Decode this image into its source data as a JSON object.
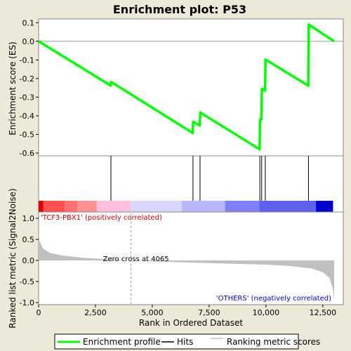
{
  "chart_data": {
    "type": "line",
    "title": "Enrichment plot: P53",
    "xlabel": "Rank in Ordered Dataset",
    "es_ylabel": "Enrichment score (ES)",
    "metric_ylabel": "Ranked list metric (Signal2Noise)",
    "x_ticks": [
      0,
      2500,
      5000,
      7500,
      10000,
      12500
    ],
    "x_tick_labels": [
      "0",
      "2,500",
      "5,000",
      "7,500",
      "10,000",
      "12,500"
    ],
    "xlim": [
      0,
      13400
    ],
    "es_ylim": [
      -0.615,
      0.12
    ],
    "es_ticks": [
      0.1,
      0.0,
      -0.1,
      -0.2,
      -0.3,
      -0.4,
      -0.5,
      -0.6
    ],
    "es_tick_labels": [
      "0.1",
      "0.0",
      "-0.1",
      "-0.2",
      "-0.3",
      "-0.4",
      "-0.5",
      "-0.6"
    ],
    "metric_ylim": [
      -1.05,
      1.15
    ],
    "metric_ticks": [
      1.0,
      0.5,
      0.0,
      -0.5,
      -1.0
    ],
    "metric_tick_labels": [
      "1.0",
      "0.5",
      "0.0",
      "-0.5",
      "-1.0"
    ],
    "series": [
      {
        "name": "Enrichment profile",
        "color": "#00ff00",
        "x": [
          0,
          3170,
          3190,
          6780,
          6800,
          7090,
          7110,
          9720,
          9740,
          9800,
          9820,
          9960,
          9980,
          11860,
          11880,
          13000
        ],
        "y": [
          0.0,
          -0.238,
          -0.218,
          -0.492,
          -0.432,
          -0.452,
          -0.382,
          -0.58,
          -0.42,
          -0.42,
          -0.255,
          -0.265,
          -0.098,
          -0.238,
          0.09,
          0.0
        ]
      }
    ],
    "hits": [
      3180,
      6790,
      7100,
      9730,
      9810,
      9970,
      11870
    ],
    "hits_color": "#000000",
    "metric_profile": {
      "name": "Ranking metric scores",
      "color": "#c0c0c0",
      "x": [
        0,
        50,
        200,
        500,
        1000,
        2000,
        3000,
        4065,
        6000,
        8000,
        10000,
        11000,
        12000,
        12500,
        12800,
        12950,
        13000
      ],
      "y": [
        0.65,
        0.45,
        0.28,
        0.18,
        0.12,
        0.06,
        0.03,
        0.0,
        -0.04,
        -0.07,
        -0.1,
        -0.13,
        -0.19,
        -0.28,
        -0.42,
        -0.7,
        -0.95
      ]
    },
    "zero_cross_label": "Zero cross at 4065",
    "zero_cross_x": 4065,
    "pos_label": "'TCF3-PBX1' (positively correlated)",
    "neg_label": "'OTHERS' (negatively correlated)",
    "pos_color": "#cc0000",
    "neg_color": "#0000cc",
    "colorbar": [
      {
        "x0": 0,
        "x1": 200,
        "color": "#e00000"
      },
      {
        "x0": 200,
        "x1": 1150,
        "color": "#ff5050"
      },
      {
        "x0": 1150,
        "x1": 1700,
        "color": "#ff7070"
      },
      {
        "x0": 1700,
        "x1": 2550,
        "color": "#ff9090"
      },
      {
        "x0": 2550,
        "x1": 4050,
        "color": "#ffc0e0"
      },
      {
        "x0": 4050,
        "x1": 6300,
        "color": "#d8d8ff"
      },
      {
        "x0": 6300,
        "x1": 8200,
        "color": "#b8b8ff"
      },
      {
        "x0": 8200,
        "x1": 9700,
        "color": "#8080ff"
      },
      {
        "x0": 9700,
        "x1": 12200,
        "color": "#6060ee"
      },
      {
        "x0": 12200,
        "x1": 12950,
        "color": "#0000cc"
      }
    ],
    "legend": {
      "placement": "bottom",
      "entries": [
        {
          "label": "Enrichment profile",
          "color": "#00ff00",
          "kind": "thick-line"
        },
        {
          "label": "Hits",
          "color": "#000000",
          "kind": "line"
        },
        {
          "label": "Ranking metric scores",
          "color": "#c0c0c0",
          "kind": "line"
        }
      ]
    }
  }
}
